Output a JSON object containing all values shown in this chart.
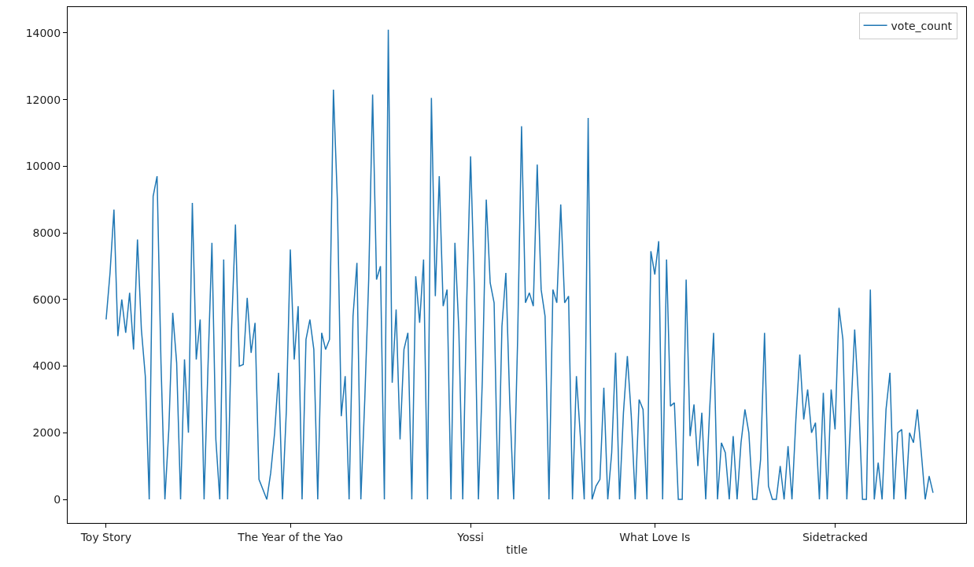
{
  "chart_data": {
    "type": "line",
    "xlabel": "title",
    "categories": [
      "Toy Story",
      null,
      null,
      null,
      null,
      null,
      null,
      null,
      null,
      null,
      null,
      null,
      null,
      null,
      null,
      null,
      null,
      null,
      null,
      null,
      null,
      null,
      null,
      null,
      null,
      null,
      null,
      null,
      null,
      null,
      null,
      null,
      null,
      null,
      null,
      null,
      null,
      null,
      null,
      null,
      null,
      null,
      null,
      null,
      null,
      null,
      null,
      "The Year of the Yao",
      null,
      null,
      null,
      null,
      null,
      null,
      null,
      null,
      null,
      null,
      null,
      null,
      null,
      null,
      null,
      null,
      null,
      null,
      null,
      null,
      null,
      null,
      null,
      null,
      null,
      null,
      null,
      null,
      null,
      null,
      null,
      null,
      null,
      null,
      null,
      null,
      null,
      null,
      null,
      null,
      null,
      null,
      null,
      null,
      null,
      "Yossi",
      null,
      null,
      null,
      null,
      null,
      null,
      null,
      null,
      null,
      null,
      null,
      null,
      null,
      null,
      null,
      null,
      null,
      null,
      null,
      null,
      null,
      null,
      null,
      null,
      null,
      null,
      null,
      null,
      null,
      null,
      null,
      null,
      null,
      null,
      null,
      null,
      null,
      null,
      null,
      null,
      null,
      null,
      null,
      null,
      null,
      null,
      "What Love Is",
      null,
      null,
      null,
      null,
      null,
      null,
      null,
      null,
      null,
      null,
      null,
      null,
      null,
      null,
      null,
      null,
      null,
      null,
      null,
      null,
      null,
      null,
      null,
      null,
      null,
      null,
      null,
      null,
      null,
      null,
      null,
      null,
      null,
      null,
      null,
      null,
      null,
      null,
      null,
      null,
      null,
      null,
      null,
      null,
      null,
      "Sidetracked",
      null,
      null,
      null,
      null,
      null,
      null,
      null,
      null,
      null,
      null,
      null,
      null,
      null,
      null,
      null,
      null,
      null,
      null,
      null,
      null,
      null,
      null,
      null,
      null,
      null
    ],
    "series": [
      {
        "name": "vote_count",
        "color": "#1f77b4",
        "values": [
          5400,
          6800,
          8700,
          4900,
          6000,
          5000,
          6200,
          4500,
          7800,
          5100,
          3700,
          0,
          9100,
          9700,
          4100,
          0,
          2100,
          5600,
          4100,
          0,
          4200,
          2000,
          8900,
          4200,
          5400,
          0,
          4000,
          7700,
          1800,
          0,
          7200,
          0,
          5100,
          8250,
          4000,
          4050,
          6050,
          4400,
          5300,
          600,
          300,
          0,
          800,
          2000,
          3800,
          0,
          2700,
          7500,
          4200,
          5800,
          0,
          4800,
          5400,
          4500,
          0,
          5000,
          4500,
          4800,
          12300,
          9000,
          2500,
          3700,
          0,
          5500,
          7100,
          0,
          3000,
          6600,
          12150,
          6600,
          7000,
          0,
          14100,
          3500,
          5700,
          1800,
          4500,
          5000,
          0,
          6700,
          5300,
          7200,
          0,
          12050,
          6100,
          9700,
          5800,
          6300,
          0,
          7700,
          5100,
          0,
          5900,
          10300,
          6200,
          0,
          3600,
          9000,
          6500,
          5900,
          0,
          5200,
          6800,
          2900,
          0,
          4800,
          11200,
          5900,
          6200,
          5800,
          10050,
          6300,
          5500,
          0,
          6300,
          5900,
          8850,
          5900,
          6100,
          0,
          3700,
          1900,
          0,
          11450,
          0,
          400,
          600,
          3350,
          0,
          1400,
          4400,
          0,
          2600,
          4300,
          2500,
          0,
          3000,
          2700,
          0,
          7450,
          6750,
          7750,
          0,
          7200,
          2800,
          2900,
          0,
          0,
          6600,
          1900,
          2850,
          1000,
          2600,
          0,
          2700,
          5000,
          0,
          1700,
          1400,
          0,
          1900,
          0,
          1700,
          2700,
          2000,
          0,
          0,
          1200,
          5000,
          400,
          0,
          0,
          1000,
          0,
          1600,
          0,
          2400,
          4350,
          2400,
          3300,
          2000,
          2300,
          0,
          3200,
          0,
          3300,
          2100,
          5750,
          4800,
          0,
          2500,
          5100,
          3000,
          0,
          0,
          6300,
          0,
          1100,
          0,
          2700,
          3800,
          0,
          2000,
          2100,
          0,
          2000,
          1700,
          2700,
          1400,
          0,
          700,
          200
        ]
      }
    ],
    "ylim": [
      -707,
      14777
    ],
    "yticks": [
      0,
      2000,
      4000,
      6000,
      8000,
      10000,
      12000,
      14000
    ],
    "legend": "top right",
    "line_style": "solid"
  }
}
